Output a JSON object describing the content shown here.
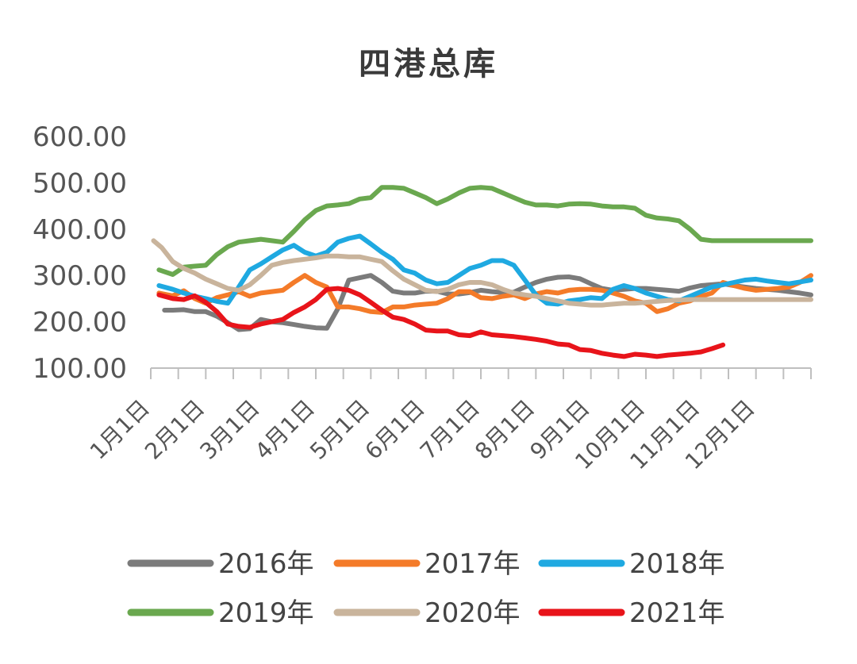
{
  "chart_data": {
    "type": "line",
    "title": "四港总库",
    "xlabel": "",
    "ylabel": "",
    "ylim": [
      100,
      600
    ],
    "yticks": [
      "100.00",
      "200.00",
      "300.00",
      "400.00",
      "500.00",
      "600.00"
    ],
    "xlim": [
      0,
      12
    ],
    "categories": [
      "1月1日",
      "2月1日",
      "3月1日",
      "4月1日",
      "5月1日",
      "6月1日",
      "7月1日",
      "8月1日",
      "9月1日",
      "10月1日",
      "11月1日",
      "12月1日"
    ],
    "legend_position": "bottom",
    "grid": false,
    "series": [
      {
        "name": "2016年",
        "color": "#7b7b7b",
        "x": [
          0.25,
          0.4,
          0.6,
          0.8,
          1.0,
          1.2,
          1.4,
          1.6,
          1.8,
          2.0,
          2.2,
          2.4,
          2.6,
          2.8,
          3.0,
          3.2,
          3.4,
          3.6,
          3.8,
          4.0,
          4.2,
          4.4,
          4.6,
          4.8,
          5.0,
          5.2,
          5.4,
          5.6,
          5.8,
          6.0,
          6.2,
          6.4,
          6.6,
          6.8,
          7.0,
          7.2,
          7.4,
          7.6,
          7.8,
          8.0,
          8.2,
          8.4,
          8.6,
          8.8,
          9.0,
          9.2,
          9.4,
          9.6,
          9.8,
          10.0,
          10.2,
          10.4,
          10.6,
          10.8,
          11.0,
          11.2,
          11.4,
          11.6,
          11.8,
          12.0
        ],
        "values": [
          225,
          225,
          226,
          222,
          222,
          212,
          198,
          183,
          185,
          205,
          200,
          198,
          194,
          190,
          187,
          186,
          228,
          290,
          295,
          300,
          285,
          266,
          262,
          262,
          266,
          266,
          260,
          260,
          263,
          268,
          265,
          263,
          264,
          275,
          285,
          292,
          296,
          297,
          293,
          282,
          272,
          268,
          270,
          272,
          272,
          270,
          268,
          266,
          273,
          278,
          280,
          282,
          278,
          275,
          272,
          270,
          268,
          265,
          262,
          258
        ]
      },
      {
        "name": "2017年",
        "color": "#f47b29",
        "x": [
          0.15,
          0.4,
          0.6,
          0.8,
          1.0,
          1.2,
          1.4,
          1.6,
          1.8,
          2.0,
          2.2,
          2.4,
          2.6,
          2.8,
          3.0,
          3.2,
          3.4,
          3.6,
          3.8,
          4.0,
          4.2,
          4.4,
          4.6,
          4.8,
          5.0,
          5.2,
          5.4,
          5.6,
          5.8,
          6.0,
          6.2,
          6.4,
          6.6,
          6.8,
          7.0,
          7.2,
          7.4,
          7.6,
          7.8,
          8.0,
          8.2,
          8.4,
          8.6,
          8.8,
          9.0,
          9.2,
          9.4,
          9.6,
          9.8,
          10.0,
          10.2,
          10.4,
          10.6,
          10.8,
          11.0,
          11.2,
          11.4,
          11.6,
          11.8,
          12.0
        ],
        "values": [
          262,
          256,
          267,
          250,
          240,
          252,
          258,
          265,
          255,
          262,
          265,
          268,
          285,
          300,
          285,
          275,
          232,
          232,
          228,
          222,
          220,
          232,
          232,
          236,
          238,
          240,
          250,
          265,
          265,
          252,
          250,
          255,
          258,
          250,
          260,
          265,
          262,
          268,
          270,
          270,
          268,
          262,
          255,
          245,
          240,
          222,
          228,
          240,
          245,
          255,
          262,
          285,
          278,
          272,
          268,
          270,
          272,
          275,
          285,
          300
        ]
      },
      {
        "name": "2018年",
        "color": "#1fa9e1",
        "x": [
          0.15,
          0.4,
          0.6,
          0.8,
          1.0,
          1.2,
          1.4,
          1.6,
          1.8,
          2.0,
          2.2,
          2.4,
          2.6,
          2.8,
          3.0,
          3.2,
          3.4,
          3.6,
          3.8,
          4.0,
          4.2,
          4.4,
          4.6,
          4.8,
          5.0,
          5.2,
          5.4,
          5.6,
          5.8,
          6.0,
          6.2,
          6.4,
          6.6,
          6.8,
          7.0,
          7.2,
          7.4,
          7.6,
          7.8,
          8.0,
          8.2,
          8.4,
          8.6,
          8.8,
          9.0,
          9.2,
          9.4,
          9.6,
          9.8,
          10.0,
          10.2,
          10.4,
          10.6,
          10.8,
          11.0,
          11.2,
          11.4,
          11.6,
          11.8,
          12.0
        ],
        "values": [
          278,
          270,
          262,
          255,
          250,
          244,
          240,
          275,
          312,
          325,
          340,
          355,
          365,
          350,
          342,
          350,
          372,
          380,
          385,
          368,
          350,
          335,
          312,
          305,
          290,
          282,
          285,
          300,
          315,
          322,
          332,
          332,
          322,
          290,
          258,
          240,
          238,
          245,
          248,
          252,
          250,
          270,
          278,
          272,
          262,
          255,
          248,
          245,
          255,
          265,
          275,
          280,
          285,
          290,
          292,
          288,
          285,
          282,
          286,
          290
        ]
      },
      {
        "name": "2019年",
        "color": "#6aa84f",
        "x": [
          0.15,
          0.4,
          0.6,
          0.8,
          1.0,
          1.2,
          1.4,
          1.6,
          1.8,
          2.0,
          2.2,
          2.4,
          2.6,
          2.8,
          3.0,
          3.2,
          3.4,
          3.6,
          3.8,
          4.0,
          4.2,
          4.4,
          4.6,
          4.8,
          5.0,
          5.2,
          5.4,
          5.6,
          5.8,
          6.0,
          6.2,
          6.4,
          6.6,
          6.8,
          7.0,
          7.2,
          7.4,
          7.6,
          7.8,
          8.0,
          8.2,
          8.4,
          8.6,
          8.8,
          9.0,
          9.2,
          9.4,
          9.6,
          9.8,
          10.0,
          10.2,
          10.4,
          10.6,
          10.8,
          11.0,
          11.2,
          11.4,
          11.6,
          11.8,
          12.0
        ],
        "values": [
          312,
          302,
          318,
          320,
          322,
          345,
          362,
          372,
          375,
          378,
          375,
          372,
          395,
          420,
          440,
          450,
          452,
          455,
          465,
          468,
          490,
          490,
          488,
          478,
          468,
          455,
          465,
          478,
          488,
          490,
          488,
          478,
          468,
          458,
          452,
          452,
          450,
          454,
          455,
          454,
          450,
          448,
          448,
          445,
          430,
          424,
          422,
          418,
          400,
          378,
          375,
          375,
          375,
          375,
          375,
          375,
          375,
          375,
          375,
          375
        ]
      },
      {
        "name": "2020年",
        "color": "#c9b49c",
        "x": [
          0.05,
          0.2,
          0.4,
          0.6,
          0.8,
          1.0,
          1.2,
          1.4,
          1.6,
          1.8,
          2.0,
          2.2,
          2.4,
          2.6,
          2.8,
          3.0,
          3.2,
          3.4,
          3.6,
          3.8,
          4.0,
          4.2,
          4.4,
          4.6,
          4.8,
          5.0,
          5.2,
          5.4,
          5.6,
          5.8,
          6.0,
          6.2,
          6.4,
          6.6,
          6.8,
          7.0,
          7.2,
          7.4,
          7.6,
          7.8,
          8.0,
          8.2,
          8.4,
          8.6,
          8.8,
          9.0,
          9.2,
          9.4,
          9.6,
          9.8,
          10.0,
          10.2,
          10.4,
          10.6,
          10.8,
          11.0,
          11.2,
          11.4,
          11.6,
          11.8,
          12.0
        ],
        "values": [
          375,
          360,
          330,
          315,
          305,
          292,
          282,
          272,
          268,
          280,
          300,
          322,
          328,
          332,
          335,
          338,
          342,
          342,
          340,
          340,
          335,
          330,
          310,
          292,
          280,
          268,
          265,
          270,
          280,
          285,
          285,
          280,
          270,
          262,
          258,
          255,
          250,
          245,
          240,
          238,
          236,
          236,
          238,
          240,
          240,
          242,
          244,
          246,
          247,
          248,
          248,
          248,
          248,
          248,
          248,
          248,
          248,
          248,
          248,
          248,
          248
        ]
      },
      {
        "name": "2021年",
        "color": "#e8141a",
        "x": [
          0.15,
          0.4,
          0.6,
          0.8,
          1.0,
          1.2,
          1.4,
          1.6,
          1.8,
          2.0,
          2.2,
          2.4,
          2.6,
          2.8,
          3.0,
          3.2,
          3.4,
          3.6,
          3.8,
          4.0,
          4.2,
          4.4,
          4.6,
          4.8,
          5.0,
          5.2,
          5.4,
          5.6,
          5.8,
          6.0,
          6.2,
          6.4,
          6.6,
          6.8,
          7.0,
          7.2,
          7.4,
          7.6,
          7.8,
          8.0,
          8.2,
          8.4,
          8.6,
          8.8,
          9.0,
          9.2,
          9.4,
          9.6,
          9.8,
          10.0,
          10.2,
          10.4
        ],
        "values": [
          258,
          250,
          248,
          256,
          242,
          222,
          195,
          190,
          188,
          195,
          200,
          205,
          220,
          232,
          248,
          270,
          272,
          268,
          258,
          242,
          225,
          210,
          205,
          195,
          182,
          180,
          180,
          172,
          170,
          178,
          172,
          170,
          168,
          165,
          162,
          158,
          152,
          150,
          140,
          138,
          132,
          128,
          125,
          130,
          128,
          125,
          128,
          130,
          132,
          135,
          142,
          150
        ]
      }
    ]
  }
}
